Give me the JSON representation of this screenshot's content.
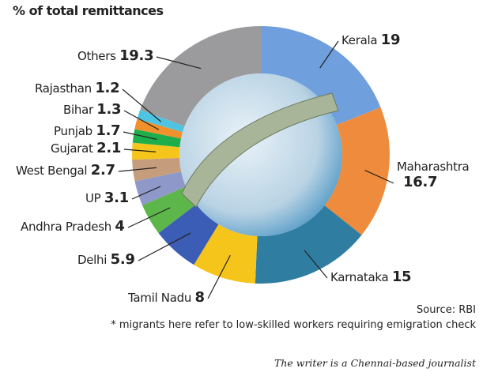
{
  "chart_data": {
    "type": "pie",
    "donut": true,
    "title": "% of total remittances",
    "categories": [
      "Kerala",
      "Maharashtra",
      "Karnataka",
      "Tamil Nadu",
      "Delhi",
      "Andhra Pradesh",
      "UP",
      "West Bengal",
      "Gujarat",
      "Punjab",
      "Bihar",
      "Rajasthan",
      "Others"
    ],
    "values": [
      19,
      16.7,
      15,
      8,
      5.9,
      4,
      3.1,
      2.7,
      2.1,
      1.7,
      1.3,
      1.2,
      19.3
    ],
    "value_labels": [
      "19",
      "16.7",
      "15",
      "8",
      "5.9",
      "4",
      "3.1",
      "2.7",
      "2.1",
      "1.7",
      "1.3",
      "1.2",
      "19.3"
    ],
    "colors": [
      "#6f9fdc",
      "#ef8b3c",
      "#2f7ea2",
      "#f6c51b",
      "#3b5db5",
      "#5cb649",
      "#8e99c9",
      "#c59d7c",
      "#f6c51b",
      "#1fae4c",
      "#f0912b",
      "#4ec4e2",
      "#9b9b9d"
    ]
  },
  "source": "Source: RBI",
  "footnote": "* migrants here refer to low-skilled workers requiring emigration check",
  "credit": "The writer is a Chennai-based journalist"
}
